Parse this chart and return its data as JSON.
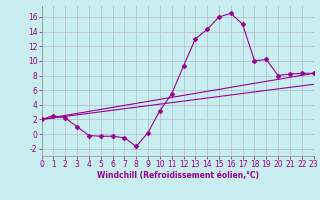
{
  "xlabel": "Windchill (Refroidissement éolien,°C)",
  "ylabel": "",
  "background_color": "#c8eef0",
  "grid_color": "#b0b8d0",
  "line_color": "#990099",
  "xlim": [
    0,
    23
  ],
  "ylim": [
    -3,
    17.5
  ],
  "xticks": [
    0,
    1,
    2,
    3,
    4,
    5,
    6,
    7,
    8,
    9,
    10,
    11,
    12,
    13,
    14,
    15,
    16,
    17,
    18,
    19,
    20,
    21,
    22,
    23
  ],
  "yticks": [
    -2,
    0,
    2,
    4,
    6,
    8,
    10,
    12,
    14,
    16
  ],
  "line1_x": [
    0,
    1,
    2,
    3,
    4,
    5,
    6,
    7,
    8,
    9,
    10,
    11,
    12,
    13,
    14,
    15,
    16,
    17,
    18,
    19,
    20,
    21,
    22,
    23
  ],
  "line1_y": [
    2.0,
    2.5,
    2.2,
    1.0,
    -0.2,
    -0.3,
    -0.3,
    -0.5,
    -1.7,
    0.2,
    3.2,
    5.5,
    9.3,
    13.0,
    14.3,
    16.0,
    16.5,
    15.0,
    10.0,
    10.2,
    8.0,
    8.2,
    8.3,
    8.3
  ],
  "line2_x": [
    0,
    23
  ],
  "line2_y": [
    2.0,
    8.3
  ],
  "line3_x": [
    0,
    23
  ],
  "line3_y": [
    2.0,
    6.8
  ],
  "marker": "D",
  "marker_size": 2.0,
  "line_width": 0.8,
  "tick_fontsize": 5.5,
  "xlabel_fontsize": 5.5
}
